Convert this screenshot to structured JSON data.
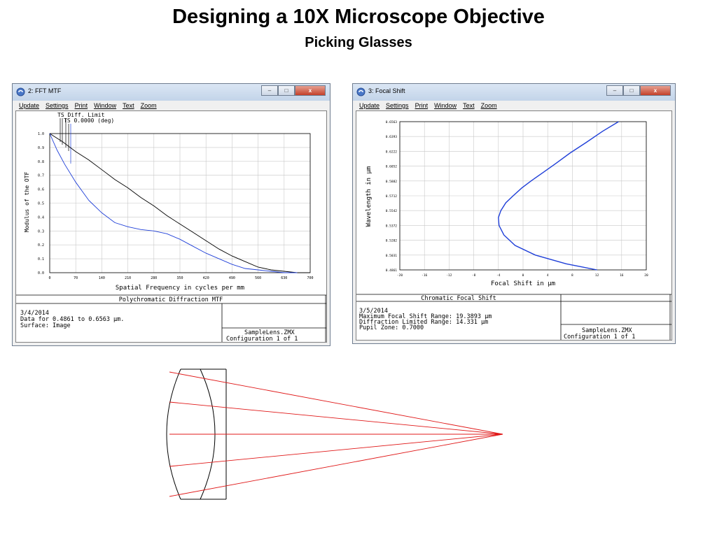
{
  "slide": {
    "title": "Designing a 10X Microscope Objective",
    "subtitle": "Picking Glasses"
  },
  "menu": [
    "Update",
    "Settings",
    "Print",
    "Window",
    "Text",
    "Zoom"
  ],
  "mtf_window": {
    "title": "2: FFT MTF",
    "legend_ts_diff": "TS Diff. Limit",
    "legend_ts": "TS 0.0000 (deg)",
    "ylabel": "Modulus of the OTF",
    "xlabel": "Spatial Frequency in cycles per mm",
    "plot_title": "Polychromatic Diffraction MTF",
    "info_date": "3/4/2014",
    "info_data": "Data for 0.4861 to 0.6563 µm.",
    "info_surface": "Surface: Image",
    "lens_file": "SampleLens.ZMX",
    "config": "Configuration 1 of 1"
  },
  "focal_window": {
    "title": "3: Focal Shift",
    "ylabel": "Wavelength in µm",
    "xlabel": "Focal Shift in µm",
    "plot_title": "Chromatic Focal Shift",
    "info_date": "3/5/2014",
    "info_max": "Maximum Focal Shift Range: 19.3893 µm",
    "info_diff": "Diffraction Limited Range: 14.331 µm",
    "info_pupil": "Pupil Zone: 0.7000",
    "lens_file": "SampleLens.ZMX",
    "config": "Configuration 1 of 1"
  },
  "chart_data": [
    {
      "type": "line",
      "title": "Polychromatic Diffraction MTF",
      "xlabel": "Spatial Frequency in cycles per mm",
      "ylabel": "Modulus of the OTF",
      "xlim": [
        0,
        700
      ],
      "ylim": [
        0,
        1
      ],
      "x_ticks": [
        "0",
        "70",
        "140",
        "210",
        "280",
        "350",
        "420",
        "490",
        "560",
        "630",
        "700"
      ],
      "y_ticks": [
        "0.0",
        "0.1",
        "0.2",
        "0.3",
        "0.4",
        "0.5",
        "0.6",
        "0.7",
        "0.8",
        "0.9",
        "1.0"
      ],
      "grid": true,
      "series": [
        {
          "name": "TS Diff. Limit",
          "color": "#000000",
          "points": [
            [
              0,
              1.0
            ],
            [
              35,
              0.94
            ],
            [
              70,
              0.87
            ],
            [
              105,
              0.81
            ],
            [
              140,
              0.74
            ],
            [
              175,
              0.67
            ],
            [
              210,
              0.61
            ],
            [
              245,
              0.54
            ],
            [
              280,
              0.48
            ],
            [
              315,
              0.41
            ],
            [
              350,
              0.35
            ],
            [
              385,
              0.29
            ],
            [
              420,
              0.23
            ],
            [
              455,
              0.17
            ],
            [
              490,
              0.12
            ],
            [
              525,
              0.08
            ],
            [
              560,
              0.04
            ],
            [
              595,
              0.02
            ],
            [
              630,
              0.01
            ],
            [
              665,
              0.0
            ],
            [
              700,
              0.0
            ]
          ]
        },
        {
          "name": "TS 0.0000 (deg)",
          "color": "#1f3fd8",
          "points": [
            [
              0,
              1.0
            ],
            [
              20,
              0.88
            ],
            [
              40,
              0.78
            ],
            [
              70,
              0.65
            ],
            [
              105,
              0.52
            ],
            [
              140,
              0.43
            ],
            [
              175,
              0.36
            ],
            [
              210,
              0.33
            ],
            [
              245,
              0.31
            ],
            [
              280,
              0.3
            ],
            [
              315,
              0.28
            ],
            [
              350,
              0.24
            ],
            [
              385,
              0.19
            ],
            [
              420,
              0.14
            ],
            [
              455,
              0.1
            ],
            [
              490,
              0.06
            ],
            [
              525,
              0.03
            ],
            [
              560,
              0.02
            ],
            [
              595,
              0.01
            ],
            [
              630,
              0.0
            ],
            [
              665,
              0.0
            ]
          ]
        }
      ]
    },
    {
      "type": "line",
      "title": "Chromatic Focal Shift",
      "xlabel": "Focal Shift in µm",
      "ylabel": "Wavelength in µm",
      "xlim": [
        -20,
        20
      ],
      "ylim": [
        0.4861,
        0.6563
      ],
      "x_ticks": [
        "-20",
        "-16",
        "-12",
        "-8",
        "-4",
        "0",
        "4",
        "8",
        "12",
        "16",
        "20"
      ],
      "y_ticks": [
        "0.4861",
        "0.5031",
        "0.5202",
        "0.5372",
        "0.5542",
        "0.5712",
        "0.5882",
        "0.6052",
        "0.6222",
        "0.6393",
        "0.6563"
      ],
      "grid": true,
      "series": [
        {
          "color": "#1f3fd8",
          "points": [
            [
              12.0,
              0.4861
            ],
            [
              7.0,
              0.4931
            ],
            [
              2.0,
              0.5031
            ],
            [
              -1.3,
              0.5142
            ],
            [
              -3.1,
              0.5262
            ],
            [
              -3.9,
              0.5372
            ],
            [
              -4.0,
              0.5462
            ],
            [
              -3.6,
              0.5542
            ],
            [
              -2.8,
              0.5632
            ],
            [
              -1.6,
              0.5712
            ],
            [
              -0.2,
              0.5802
            ],
            [
              1.3,
              0.5882
            ],
            [
              3.3,
              0.5982
            ],
            [
              5.3,
              0.6082
            ],
            [
              7.6,
              0.6202
            ],
            [
              10.2,
              0.6322
            ],
            [
              12.9,
              0.6452
            ],
            [
              15.5,
              0.6563
            ]
          ]
        }
      ]
    }
  ],
  "lens_diagram": {
    "ray_color": "#e01818",
    "lens_color": "#000000"
  }
}
